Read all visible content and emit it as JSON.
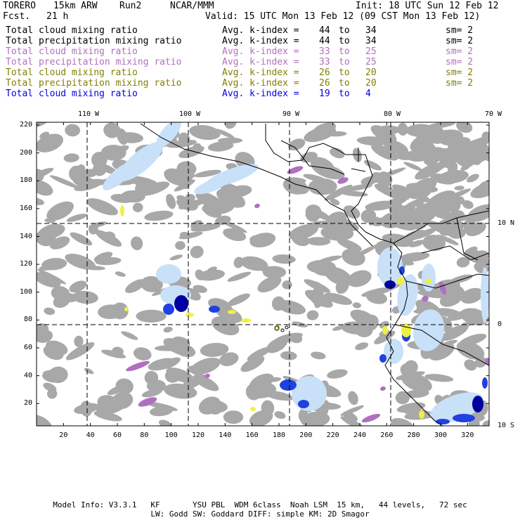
{
  "header": {
    "model": "TORERO",
    "grid": "15km ARW",
    "run": "Run2",
    "org": "NCAR/MMM",
    "init": "Init: 18 UTC Sun 12 Feb 12",
    "fcst_label": "Fcst.",
    "fcst_value": "21 h",
    "valid": "Valid: 15 UTC Mon 13 Feb 12 (09 CST Mon 13 Feb 12)"
  },
  "legend": [
    {
      "label": "Total cloud mixing ratio",
      "idx_label": "Avg. k-index =",
      "from": "44",
      "to_label": "to",
      "to": "34",
      "sm": "sm= 2",
      "color": "#000000"
    },
    {
      "label": "Total precipitation mixing ratio",
      "idx_label": "Avg. k-index =",
      "from": "44",
      "to_label": "to",
      "to": "34",
      "sm": "sm= 2",
      "color": "#000000"
    },
    {
      "label": "Total cloud mixing ratio",
      "idx_label": "Avg. k-index =",
      "from": "33",
      "to_label": "to",
      "to": "25",
      "sm": "sm= 2",
      "color": "#b070c0"
    },
    {
      "label": "Total precipitation mixing ratio",
      "idx_label": "Avg. k-index =",
      "from": "33",
      "to_label": "to",
      "to": "25",
      "sm": "sm= 2",
      "color": "#b070c0"
    },
    {
      "label": "Total cloud mixing ratio",
      "idx_label": "Avg. k-index =",
      "from": "26",
      "to_label": "to",
      "to": "20",
      "sm": "sm= 2",
      "color": "#808000"
    },
    {
      "label": "Total precipitation mixing ratio",
      "idx_label": "Avg. k-index =",
      "from": "26",
      "to_label": "to",
      "to": "20",
      "sm": "sm= 2",
      "color": "#808000"
    },
    {
      "label": "Total cloud mixing ratio",
      "idx_label": "Avg. k-index =",
      "from": "19",
      "to_label": "to",
      "to": "4",
      "sm": "",
      "color": "#0000e0"
    }
  ],
  "axes": {
    "lon_labels": [
      "110 W",
      "100 W",
      "90 W",
      "80 W",
      "70 W"
    ],
    "lat_labels": [
      "10 N",
      "0",
      "10 S"
    ],
    "y_ticks": [
      "220",
      "200",
      "180",
      "160",
      "140",
      "120",
      "100",
      "80",
      "60",
      "40",
      "20"
    ],
    "x_ticks": [
      "20",
      "40",
      "60",
      "80",
      "100",
      "120",
      "140",
      "160",
      "180",
      "200",
      "220",
      "240",
      "260",
      "280",
      "300",
      "320"
    ]
  },
  "footer": {
    "line1": "Model Info: V3.3.1   KF       YSU PBL  WDM 6class  Noah LSM  15 km,   44 levels,   72 sec",
    "line2": "LW: Godd SW: Goddard DIFF: simple KM: 2D Smagor"
  },
  "colors": {
    "cloud_gray": "#a8a8a8",
    "precip_light": "#c8e0f8",
    "precip_blue": "#2040e0",
    "precip_dark": "#0000a0",
    "yellow": "#f0f040",
    "purple": "#b070c0"
  }
}
